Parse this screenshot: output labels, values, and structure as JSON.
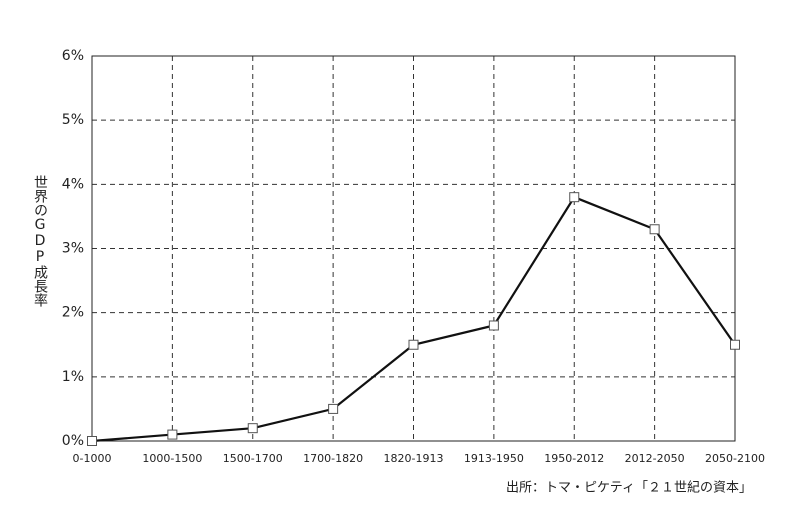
{
  "chart_data": {
    "type": "line",
    "y_label": "世界のGDP成長率",
    "source": "出所：トマ・ピケティ「２１世紀の資本」",
    "categories": [
      "0-1000",
      "1000-1500",
      "1500-1700",
      "1700-1820",
      "1820-1913",
      "1913-1950",
      "1950-2012",
      "2012-2050",
      "2050-2100"
    ],
    "values": [
      0.0,
      0.1,
      0.2,
      0.5,
      1.5,
      1.8,
      3.8,
      3.3,
      1.5
    ],
    "color": "#111111",
    "ylim": [
      0,
      6
    ],
    "yticks": [
      {
        "value": 0,
        "label": "0%"
      },
      {
        "value": 1,
        "label": "1%"
      },
      {
        "value": 2,
        "label": "2%"
      },
      {
        "value": 3,
        "label": "3%"
      },
      {
        "value": 4,
        "label": "4%"
      },
      {
        "value": 5,
        "label": "5%"
      },
      {
        "value": 6,
        "label": "6%"
      }
    ],
    "grid": true
  }
}
